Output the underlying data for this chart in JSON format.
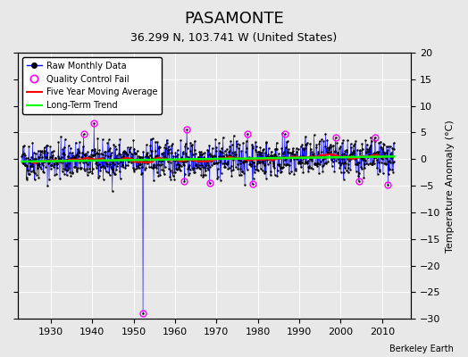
{
  "title": "PASAMONTE",
  "subtitle": "36.299 N, 103.741 W (United States)",
  "ylabel": "Temperature Anomaly (°C)",
  "credit": "Berkeley Earth",
  "xlim": [
    1922,
    2017
  ],
  "ylim": [
    -30,
    20
  ],
  "yticks": [
    -30,
    -25,
    -20,
    -15,
    -10,
    -5,
    0,
    5,
    10,
    15,
    20
  ],
  "xticks": [
    1930,
    1940,
    1950,
    1960,
    1970,
    1980,
    1990,
    2000,
    2010
  ],
  "bg_color": "#e8e8e8",
  "grid_color": "white",
  "seed": 42,
  "n_months": 1080,
  "start_year": 1923,
  "outlier_year": 1952,
  "outlier_value": -29.0
}
